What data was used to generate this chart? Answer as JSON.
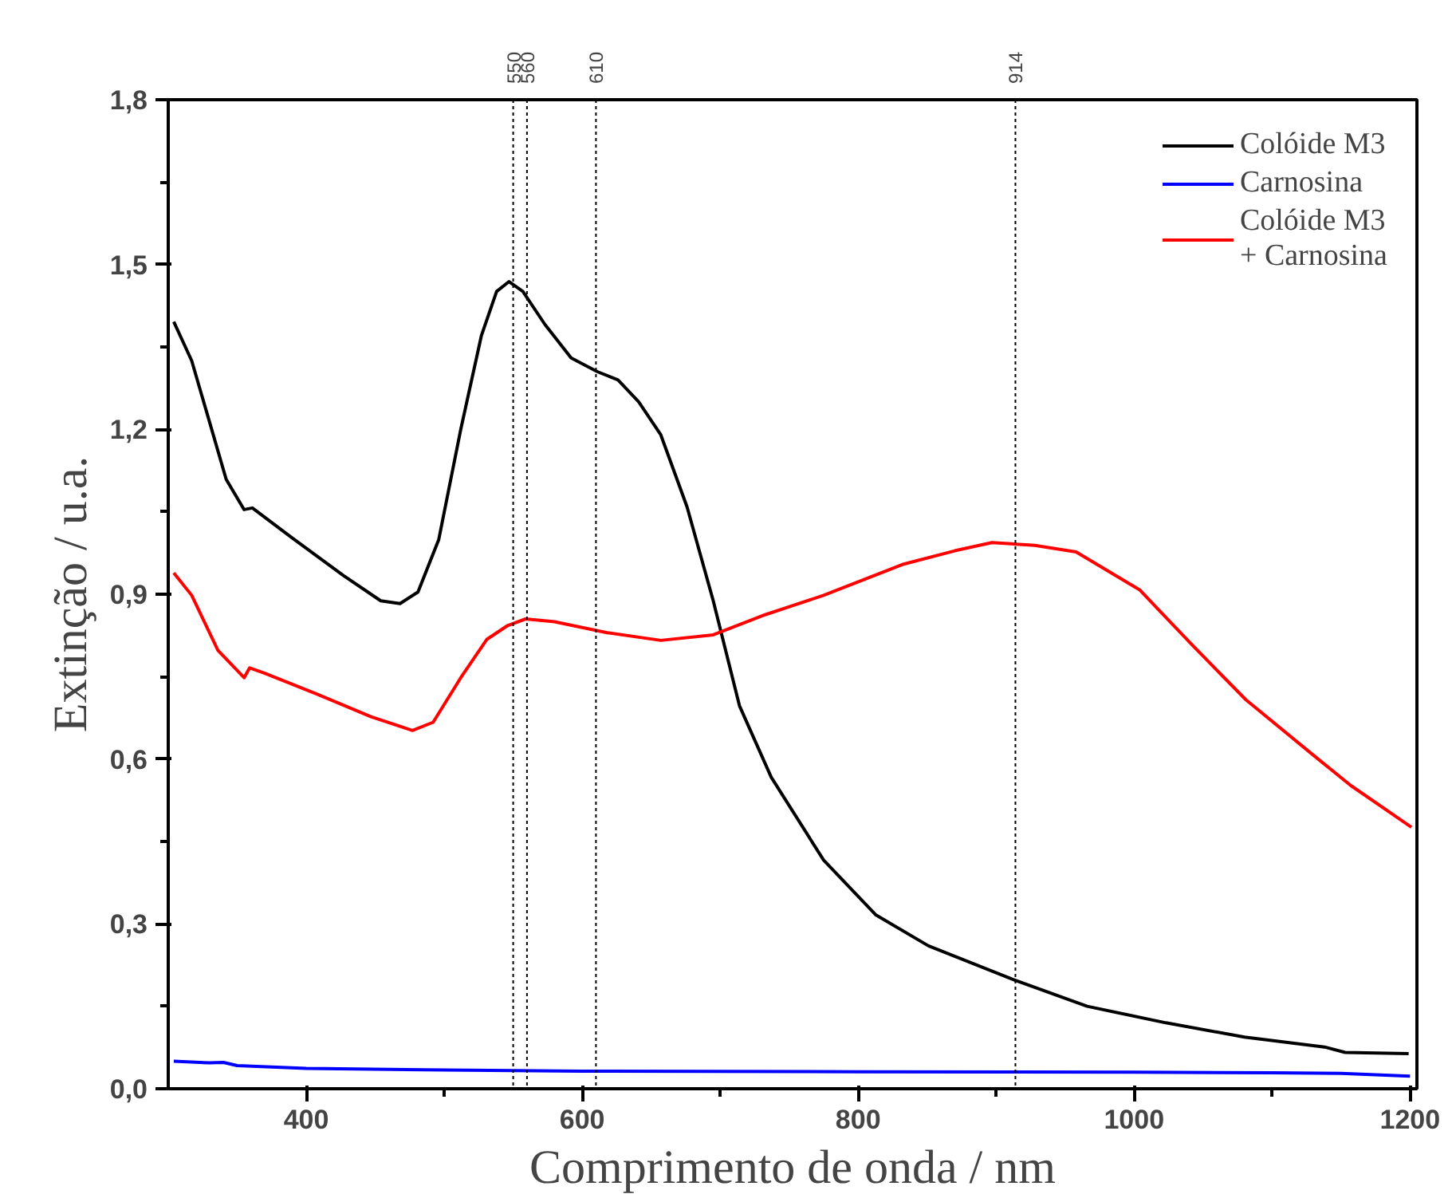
{
  "chart_data": {
    "type": "line",
    "xlabel": "Comprimento de onda / nm",
    "ylabel": "Extinção / u.a.",
    "xlim": [
      300,
      1205
    ],
    "ylim": [
      0,
      1.8
    ],
    "xticks": [
      400,
      600,
      800,
      1000,
      1200,
      {
        "value": 500,
        "label": null
      },
      {
        "value": 700,
        "label": null
      },
      {
        "value": 900,
        "label": null
      },
      {
        "value": 1100,
        "label": null
      }
    ],
    "yticks": [
      {
        "value": 0,
        "label": "0,0"
      },
      {
        "value": 0.3,
        "label": "0,3"
      },
      {
        "value": 0.6,
        "label": "0,6"
      },
      {
        "value": 0.9,
        "label": "0,9"
      },
      {
        "value": 1.2,
        "label": "1,2"
      },
      {
        "value": 1.5,
        "label": "1,5"
      },
      {
        "value": 1.8,
        "label": "1,8"
      },
      {
        "value": 0.15,
        "label": null
      },
      {
        "value": 0.45,
        "label": null
      },
      {
        "value": 0.75,
        "label": null
      },
      {
        "value": 1.05,
        "label": null
      },
      {
        "value": 1.35,
        "label": null
      },
      {
        "value": 1.65,
        "label": null
      }
    ],
    "grid": false,
    "legend": "top right",
    "marker": "none",
    "line_style": "solid",
    "series": [
      {
        "name": "Colóide M3",
        "color": "#000000",
        "x": [
          304,
          317,
          328,
          342,
          355,
          361,
          389,
          427,
          454,
          468,
          481,
          496,
          512,
          527,
          538,
          547,
          557,
          573,
          592,
          611,
          626,
          641,
          657,
          676,
          695,
          714,
          737,
          775,
          813,
          851,
          911,
          966,
          1023,
          1080,
          1138,
          1153,
          1199
        ],
        "values": [
          1.396,
          1.325,
          1.23,
          1.109,
          1.054,
          1.057,
          1.004,
          0.934,
          0.888,
          0.883,
          0.904,
          0.999,
          1.2,
          1.371,
          1.451,
          1.469,
          1.451,
          1.391,
          1.33,
          1.305,
          1.29,
          1.25,
          1.19,
          1.059,
          0.888,
          0.697,
          0.567,
          0.416,
          0.316,
          0.26,
          0.2,
          0.15,
          0.12,
          0.094,
          0.076,
          0.066,
          0.064
        ]
      },
      {
        "name": "Carnosina",
        "color": "#0000ff",
        "x": [
          304,
          330,
          340,
          350,
          400,
          500,
          600,
          800,
          1000,
          1100,
          1150,
          1200
        ],
        "values": [
          0.05,
          0.047,
          0.048,
          0.042,
          0.037,
          0.034,
          0.032,
          0.031,
          0.03,
          0.029,
          0.028,
          0.023
        ]
      },
      {
        "name": "Colóide M3\n+ Carnosina",
        "color": "#ff0000",
        "x": [
          304,
          317,
          336,
          355,
          359,
          370,
          408,
          447,
          477,
          492,
          512,
          531,
          546,
          559,
          580,
          618,
          657,
          695,
          733,
          775,
          832,
          870,
          897,
          928,
          958,
          1004,
          1042,
          1081,
          1130,
          1157,
          1201
        ],
        "values": [
          0.939,
          0.898,
          0.798,
          0.748,
          0.766,
          0.756,
          0.718,
          0.677,
          0.652,
          0.667,
          0.748,
          0.818,
          0.843,
          0.855,
          0.85,
          0.83,
          0.816,
          0.826,
          0.863,
          0.898,
          0.954,
          0.979,
          0.994,
          0.989,
          0.977,
          0.908,
          0.808,
          0.708,
          0.607,
          0.552,
          0.476
        ]
      }
    ],
    "ref_lines": [
      {
        "axis": "x",
        "value": 550,
        "label": "550",
        "color": "#000000",
        "line_style": "dotted"
      },
      {
        "axis": "x",
        "value": 560,
        "label": "560",
        "color": "#000000",
        "line_style": "dotted"
      },
      {
        "axis": "x",
        "value": 610,
        "label": "610",
        "color": "#000000",
        "line_style": "dotted"
      },
      {
        "axis": "x",
        "value": 914,
        "label": "914",
        "color": "#000000",
        "line_style": "dotted"
      }
    ]
  }
}
